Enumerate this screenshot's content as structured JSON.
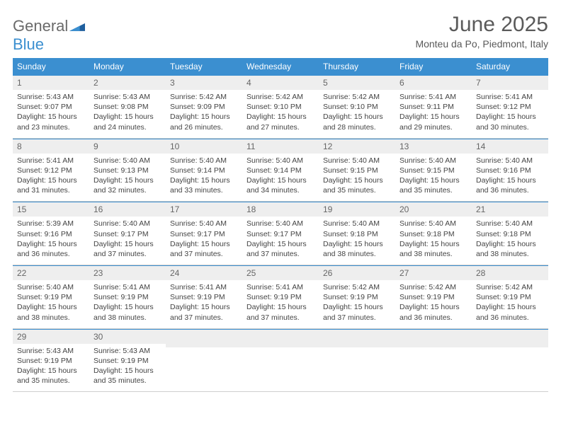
{
  "brand": {
    "part1": "General",
    "part2": "Blue"
  },
  "title": "June 2025",
  "location": "Monteu da Po, Piedmont, Italy",
  "colors": {
    "header_bg": "#3b8fd0",
    "header_text": "#ffffff",
    "daynum_bg": "#eeeeee",
    "daynum_text": "#666666",
    "body_text": "#444444",
    "title_text": "#5a5a5a",
    "row_divider": "#cfcfcf"
  },
  "days_of_week": [
    "Sunday",
    "Monday",
    "Tuesday",
    "Wednesday",
    "Thursday",
    "Friday",
    "Saturday"
  ],
  "weeks": [
    [
      {
        "n": "1",
        "sunrise": "5:43 AM",
        "sunset": "9:07 PM",
        "daylight": "15 hours and 23 minutes."
      },
      {
        "n": "2",
        "sunrise": "5:43 AM",
        "sunset": "9:08 PM",
        "daylight": "15 hours and 24 minutes."
      },
      {
        "n": "3",
        "sunrise": "5:42 AM",
        "sunset": "9:09 PM",
        "daylight": "15 hours and 26 minutes."
      },
      {
        "n": "4",
        "sunrise": "5:42 AM",
        "sunset": "9:10 PM",
        "daylight": "15 hours and 27 minutes."
      },
      {
        "n": "5",
        "sunrise": "5:42 AM",
        "sunset": "9:10 PM",
        "daylight": "15 hours and 28 minutes."
      },
      {
        "n": "6",
        "sunrise": "5:41 AM",
        "sunset": "9:11 PM",
        "daylight": "15 hours and 29 minutes."
      },
      {
        "n": "7",
        "sunrise": "5:41 AM",
        "sunset": "9:12 PM",
        "daylight": "15 hours and 30 minutes."
      }
    ],
    [
      {
        "n": "8",
        "sunrise": "5:41 AM",
        "sunset": "9:12 PM",
        "daylight": "15 hours and 31 minutes."
      },
      {
        "n": "9",
        "sunrise": "5:40 AM",
        "sunset": "9:13 PM",
        "daylight": "15 hours and 32 minutes."
      },
      {
        "n": "10",
        "sunrise": "5:40 AM",
        "sunset": "9:14 PM",
        "daylight": "15 hours and 33 minutes."
      },
      {
        "n": "11",
        "sunrise": "5:40 AM",
        "sunset": "9:14 PM",
        "daylight": "15 hours and 34 minutes."
      },
      {
        "n": "12",
        "sunrise": "5:40 AM",
        "sunset": "9:15 PM",
        "daylight": "15 hours and 35 minutes."
      },
      {
        "n": "13",
        "sunrise": "5:40 AM",
        "sunset": "9:15 PM",
        "daylight": "15 hours and 35 minutes."
      },
      {
        "n": "14",
        "sunrise": "5:40 AM",
        "sunset": "9:16 PM",
        "daylight": "15 hours and 36 minutes."
      }
    ],
    [
      {
        "n": "15",
        "sunrise": "5:39 AM",
        "sunset": "9:16 PM",
        "daylight": "15 hours and 36 minutes."
      },
      {
        "n": "16",
        "sunrise": "5:40 AM",
        "sunset": "9:17 PM",
        "daylight": "15 hours and 37 minutes."
      },
      {
        "n": "17",
        "sunrise": "5:40 AM",
        "sunset": "9:17 PM",
        "daylight": "15 hours and 37 minutes."
      },
      {
        "n": "18",
        "sunrise": "5:40 AM",
        "sunset": "9:17 PM",
        "daylight": "15 hours and 37 minutes."
      },
      {
        "n": "19",
        "sunrise": "5:40 AM",
        "sunset": "9:18 PM",
        "daylight": "15 hours and 38 minutes."
      },
      {
        "n": "20",
        "sunrise": "5:40 AM",
        "sunset": "9:18 PM",
        "daylight": "15 hours and 38 minutes."
      },
      {
        "n": "21",
        "sunrise": "5:40 AM",
        "sunset": "9:18 PM",
        "daylight": "15 hours and 38 minutes."
      }
    ],
    [
      {
        "n": "22",
        "sunrise": "5:40 AM",
        "sunset": "9:19 PM",
        "daylight": "15 hours and 38 minutes."
      },
      {
        "n": "23",
        "sunrise": "5:41 AM",
        "sunset": "9:19 PM",
        "daylight": "15 hours and 38 minutes."
      },
      {
        "n": "24",
        "sunrise": "5:41 AM",
        "sunset": "9:19 PM",
        "daylight": "15 hours and 37 minutes."
      },
      {
        "n": "25",
        "sunrise": "5:41 AM",
        "sunset": "9:19 PM",
        "daylight": "15 hours and 37 minutes."
      },
      {
        "n": "26",
        "sunrise": "5:42 AM",
        "sunset": "9:19 PM",
        "daylight": "15 hours and 37 minutes."
      },
      {
        "n": "27",
        "sunrise": "5:42 AM",
        "sunset": "9:19 PM",
        "daylight": "15 hours and 36 minutes."
      },
      {
        "n": "28",
        "sunrise": "5:42 AM",
        "sunset": "9:19 PM",
        "daylight": "15 hours and 36 minutes."
      }
    ],
    [
      {
        "n": "29",
        "sunrise": "5:43 AM",
        "sunset": "9:19 PM",
        "daylight": "15 hours and 35 minutes."
      },
      {
        "n": "30",
        "sunrise": "5:43 AM",
        "sunset": "9:19 PM",
        "daylight": "15 hours and 35 minutes."
      },
      null,
      null,
      null,
      null,
      null
    ]
  ],
  "labels": {
    "sunrise": "Sunrise: ",
    "sunset": "Sunset: ",
    "daylight": "Daylight: "
  }
}
